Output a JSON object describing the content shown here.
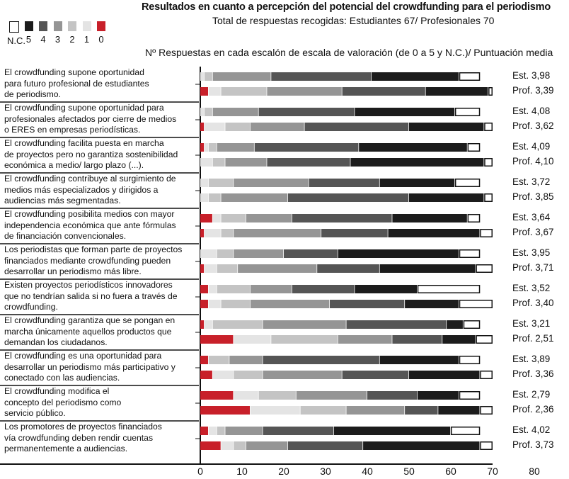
{
  "chart_data": {
    "type": "bar",
    "orientation": "horizontal-stacked",
    "title": "Resultados en cuanto a percepción del potencial del crowdfunding para el periodismo",
    "subtitle": "Total de respuestas recogidas: Estudiantes 67/ Profesionales 70",
    "xlabel": "Nº Respuestas en cada escalón de escala de valoración (de 0 a 5 y N.C.)/ Puntuación media",
    "xlim": [
      0,
      80
    ],
    "xticks": [
      "0",
      "10",
      "20",
      "30",
      "40",
      "50",
      "60",
      "70",
      "80"
    ],
    "legend": {
      "placement": "top-left",
      "entries": [
        {
          "key": "nc",
          "label": "N.C.",
          "color": "#ffffff"
        },
        {
          "key": "5",
          "label": "5",
          "color": "#1c1c1c"
        },
        {
          "key": "4",
          "label": "4",
          "color": "#555555"
        },
        {
          "key": "3",
          "label": "3",
          "color": "#959595"
        },
        {
          "key": "2",
          "label": "2",
          "color": "#c4c4c4"
        },
        {
          "key": "1",
          "label": "1",
          "color": "#e4e4e4"
        },
        {
          "key": "0",
          "label": "0",
          "color": "#c8202a"
        }
      ]
    },
    "segment_order": [
      "0",
      "1",
      "2",
      "3",
      "4",
      "5",
      "nc"
    ],
    "rows": [
      {
        "label": [
          "El crowdfunding supone oportunidad",
          "para futuro profesional de estudiantes",
          "de periodismo."
        ],
        "est": {
          "name": "Est.",
          "mean": "3,98",
          "values": [
            0,
            1,
            2,
            14,
            24,
            21,
            5
          ]
        },
        "prof": {
          "name": "Prof.",
          "mean": "3,39",
          "values": [
            2,
            3,
            11,
            18,
            20,
            15,
            1
          ]
        }
      },
      {
        "label": [
          "El crowdfunding supone oportunidad para",
          "profesionales afectados por cierre de medios",
          "o ERES en empresas periodísticas."
        ],
        "est": {
          "name": "Est.",
          "mean": "4,08",
          "values": [
            0,
            1,
            2,
            11,
            23,
            24,
            6
          ]
        },
        "prof": {
          "name": "Prof.",
          "mean": "3,62",
          "values": [
            1,
            5,
            6,
            13,
            25,
            18,
            2
          ]
        }
      },
      {
        "label": [
          "El crowdfunding facilita puesta en marcha",
          "de proyectos pero no garantiza sostenibilidad",
          "económica a medio/ largo plazo (...)."
        ],
        "est": {
          "name": "Est.",
          "mean": "4,09",
          "values": [
            1,
            1,
            2,
            9,
            25,
            26,
            3
          ]
        },
        "prof": {
          "name": "Prof.",
          "mean": "4,10",
          "values": [
            0,
            3,
            3,
            10,
            20,
            32,
            2
          ]
        }
      },
      {
        "label": [
          "El crowdfunding contribuye al surgimiento de",
          "medios más especializados y dirigidos a",
          "audiencias más segmentadas."
        ],
        "est": {
          "name": "Est.",
          "mean": "3,72",
          "values": [
            0,
            2,
            6,
            18,
            17,
            18,
            6
          ]
        },
        "prof": {
          "name": "Prof.",
          "mean": "3,85",
          "values": [
            0,
            2,
            3,
            16,
            29,
            18,
            2
          ]
        }
      },
      {
        "label": [
          "El crowdfunding posibilita medios con mayor",
          "independencia económica que ante fórmulas",
          "de financiación convencionales."
        ],
        "est": {
          "name": "Est.",
          "mean": "3,64",
          "values": [
            3,
            2,
            6,
            11,
            24,
            18,
            3
          ]
        },
        "prof": {
          "name": "Prof.",
          "mean": "3,67",
          "values": [
            1,
            4,
            3,
            21,
            16,
            22,
            3
          ]
        }
      },
      {
        "label": [
          "Los periodistas que forman parte de proyectos",
          "financiados mediante crowdfunding pueden",
          "desarrollar un periodismo más libre."
        ],
        "est": {
          "name": "Est.",
          "mean": "3,95",
          "values": [
            0,
            4,
            4,
            12,
            13,
            29,
            5
          ]
        },
        "prof": {
          "name": "Prof.",
          "mean": "3,71",
          "values": [
            1,
            3,
            5,
            19,
            15,
            23,
            4
          ]
        }
      },
      {
        "label": [
          "Existen proyectos periodísticos innovadores",
          "que no tendrían salida si no fuera a través de",
          "crowdfunding."
        ],
        "est": {
          "name": "Est.",
          "mean": "3,52",
          "values": [
            2,
            2,
            8,
            10,
            15,
            15,
            15
          ]
        },
        "prof": {
          "name": "Prof.",
          "mean": "3,40",
          "values": [
            2,
            3,
            7,
            19,
            18,
            13,
            8
          ]
        }
      },
      {
        "label": [
          "El crowdfunding garantiza que se pongan en",
          "marcha únicamente aquellos productos que",
          "demandan los ciudadanos."
        ],
        "est": {
          "name": "Est.",
          "mean": "3,21",
          "values": [
            1,
            2,
            12,
            20,
            24,
            4,
            4
          ]
        },
        "prof": {
          "name": "Prof.",
          "mean": "2,51",
          "values": [
            8,
            9,
            16,
            13,
            12,
            8,
            4
          ]
        }
      },
      {
        "label": [
          "El crowdfunding es una oportunidad para",
          "desarrollar un periodismo más participativo y",
          "conectado con las audiencias."
        ],
        "est": {
          "name": "Est.",
          "mean": "3,89",
          "values": [
            2,
            0,
            5,
            8,
            28,
            19,
            5
          ]
        },
        "prof": {
          "name": "Prof.",
          "mean": "3,36",
          "values": [
            3,
            5,
            7,
            19,
            16,
            17,
            3
          ]
        }
      },
      {
        "label": [
          "El crowdfunding modifica el",
          "concepto del periodismo como",
          "servicio público."
        ],
        "est": {
          "name": "Est.",
          "mean": "2,79",
          "values": [
            8,
            6,
            9,
            17,
            12,
            10,
            5
          ]
        },
        "prof": {
          "name": "Prof.",
          "mean": "2,36",
          "values": [
            12,
            12,
            11,
            14,
            8,
            10,
            3
          ]
        }
      },
      {
        "label": [
          "Los promotores de proyectos financiados",
          "vía crowdfunding deben rendir cuentas",
          "permanentemente a audiencias."
        ],
        "est": {
          "name": "Est.",
          "mean": "4,02",
          "values": [
            2,
            2,
            2,
            9,
            17,
            28,
            7
          ]
        },
        "prof": {
          "name": "Prof.",
          "mean": "3,73",
          "values": [
            5,
            3,
            3,
            10,
            18,
            28,
            3
          ]
        }
      }
    ]
  }
}
